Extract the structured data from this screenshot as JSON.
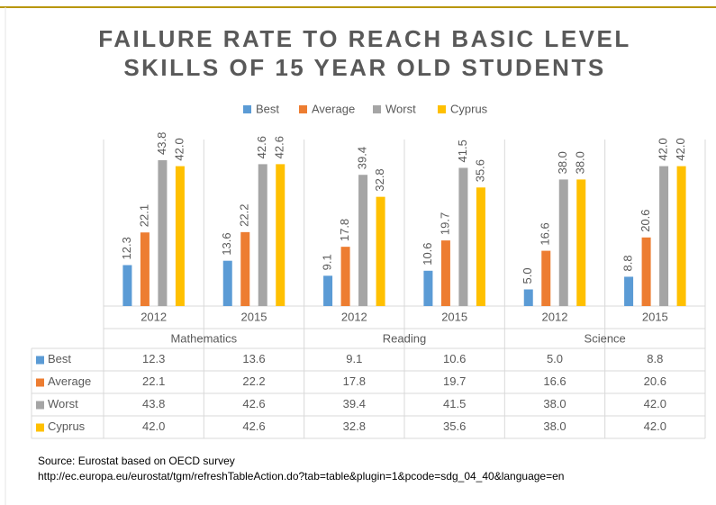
{
  "chart_data": {
    "type": "bar",
    "title": [
      "FAILURE RATE TO REACH BASIC LEVEL",
      "SKILLS OF 15 YEAR OLD STUDENTS"
    ],
    "categories": [
      "2012",
      "2015",
      "2012",
      "2015",
      "2012",
      "2015"
    ],
    "groups": [
      "Mathematics",
      "Reading",
      "Science"
    ],
    "series": [
      {
        "name": "Best",
        "color": "#5b9bd5",
        "values": [
          12.3,
          13.6,
          9.1,
          10.6,
          5.0,
          8.8
        ],
        "value_labels": [
          "12.3",
          "13.6",
          "9.1",
          "10.6",
          "5.0",
          "8.8"
        ]
      },
      {
        "name": "Average",
        "color": "#ed7d31",
        "values": [
          22.1,
          22.2,
          17.8,
          19.7,
          16.6,
          20.6
        ],
        "value_labels": [
          "22.1",
          "22.2",
          "17.8",
          "19.7",
          "16.6",
          "20.6"
        ]
      },
      {
        "name": "Worst",
        "color": "#a5a5a5",
        "values": [
          43.8,
          42.6,
          39.4,
          41.5,
          38.0,
          42.0
        ],
        "value_labels": [
          "43.8",
          "42.6",
          "39.4",
          "41.5",
          "38.0",
          "42.0"
        ]
      },
      {
        "name": "Cyprus",
        "color": "#ffc000",
        "values": [
          42.0,
          42.6,
          32.8,
          35.6,
          38.0,
          42.0
        ],
        "value_labels": [
          "42.0",
          "42.6",
          "32.8",
          "35.6",
          "38.0",
          "42.0"
        ]
      }
    ],
    "ylim": [
      0,
      50
    ],
    "legend": "top",
    "source": [
      "Source: Eurostat based on OECD survey",
      "http://ec.europa.eu/eurostat/tgm/refreshTableAction.do?tab=table&plugin=1&pcode=sdg_04_40&language=en"
    ]
  }
}
